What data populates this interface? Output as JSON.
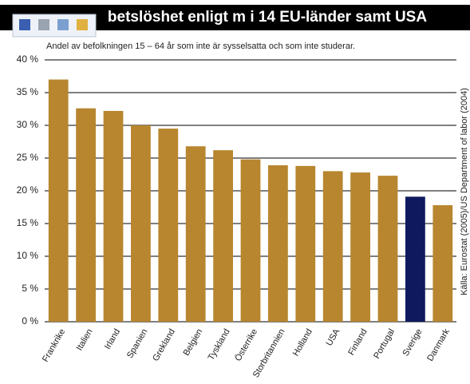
{
  "chart_data": {
    "type": "bar",
    "title": "betslöshet enligt m i 14 EU-länder samt USA",
    "subtitle": "Andel av befolkningen 15 – 64 år som inte är sysselsatta och som inte studerar.",
    "source": "Källa: Eurostat (2005)/US Department of labor (2004)",
    "categories": [
      "Frankrike",
      "Italien",
      "Irland",
      "Spanien",
      "Grekland",
      "Belgien",
      "Tyskland",
      "Österrike",
      "Storbritannien",
      "Holland",
      "USA",
      "Finland",
      "Portugal",
      "Sverige",
      "Danmark"
    ],
    "values": [
      37,
      32.6,
      32.2,
      30,
      29.5,
      26.8,
      26.2,
      24.8,
      23.9,
      23.8,
      23,
      22.8,
      22.3,
      19.1,
      17.8
    ],
    "colors": [
      "#b8862f",
      "#b8862f",
      "#b8862f",
      "#b8862f",
      "#b8862f",
      "#b8862f",
      "#b8862f",
      "#b8862f",
      "#b8862f",
      "#b8862f",
      "#b8862f",
      "#b8862f",
      "#b8862f",
      "#0f1a5e",
      "#b8862f"
    ],
    "ylim": [
      0,
      40
    ],
    "yticks": [
      {
        "value": 0,
        "label": "0 %"
      },
      {
        "value": 5,
        "label": "5 %"
      },
      {
        "value": 10,
        "label": "10 %"
      },
      {
        "value": 15,
        "label": "15 %"
      },
      {
        "value": 20,
        "label": "20 %"
      },
      {
        "value": 25,
        "label": "25 %"
      },
      {
        "value": 30,
        "label": "30 %"
      },
      {
        "value": 35,
        "label": "35 %"
      },
      {
        "value": 40,
        "label": "40 %"
      }
    ],
    "grid": true
  }
}
